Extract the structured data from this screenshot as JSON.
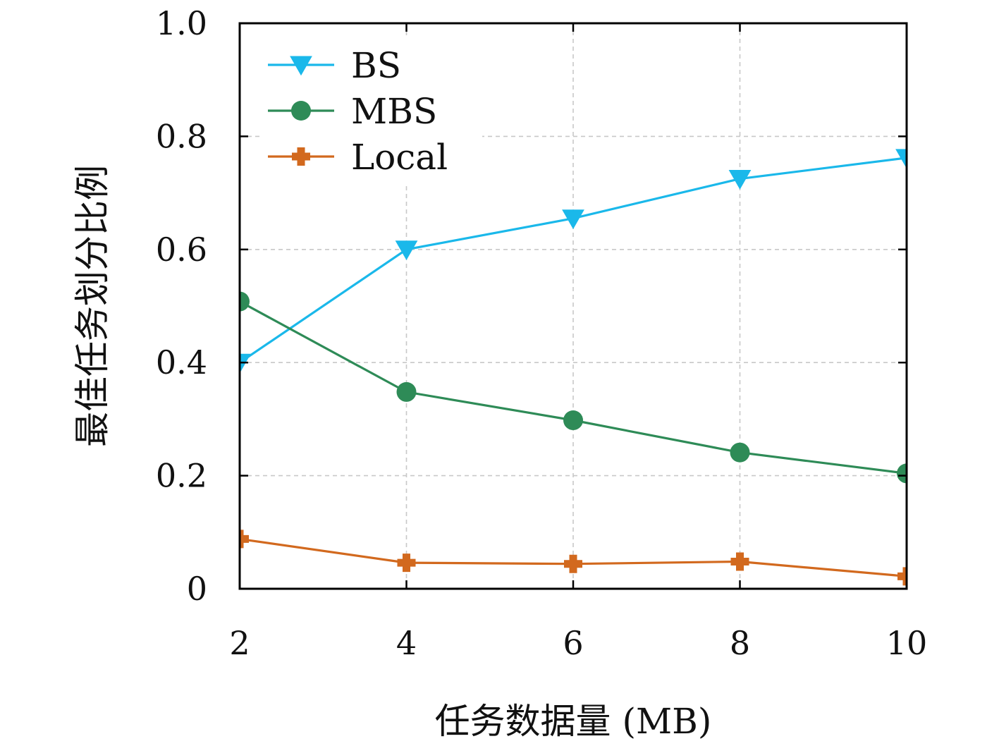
{
  "chart_data": {
    "type": "line",
    "title": "",
    "xlabel": "任务数据量 (MB)",
    "ylabel": "最佳任务划分比例",
    "x": [
      2,
      4,
      6,
      8,
      10
    ],
    "xlim": [
      2,
      10
    ],
    "ylim": [
      0,
      1.0
    ],
    "xticks": [
      "2",
      "4",
      "6",
      "8",
      "10"
    ],
    "yticks": [
      {
        "value": 0,
        "label": "0"
      },
      {
        "value": 0.2,
        "label": "0.2"
      },
      {
        "value": 0.4,
        "label": "0.4"
      },
      {
        "value": 0.6,
        "label": "0.6"
      },
      {
        "value": 0.8,
        "label": "0.8"
      },
      {
        "value": 1.0,
        "label": "1.0"
      }
    ],
    "grid": true,
    "legend_position": "top-left",
    "series": [
      {
        "name": "BS",
        "color": "#1ab8ea",
        "marker": "triangle-down",
        "values": [
          0.4,
          0.6,
          0.655,
          0.725,
          0.762
        ]
      },
      {
        "name": "MBS",
        "color": "#2e8b57",
        "marker": "circle",
        "values": [
          0.508,
          0.348,
          0.298,
          0.241,
          0.204
        ]
      },
      {
        "name": "Local",
        "color": "#d2691e",
        "marker": "plus",
        "values": [
          0.088,
          0.046,
          0.044,
          0.048,
          0.022
        ]
      }
    ]
  }
}
